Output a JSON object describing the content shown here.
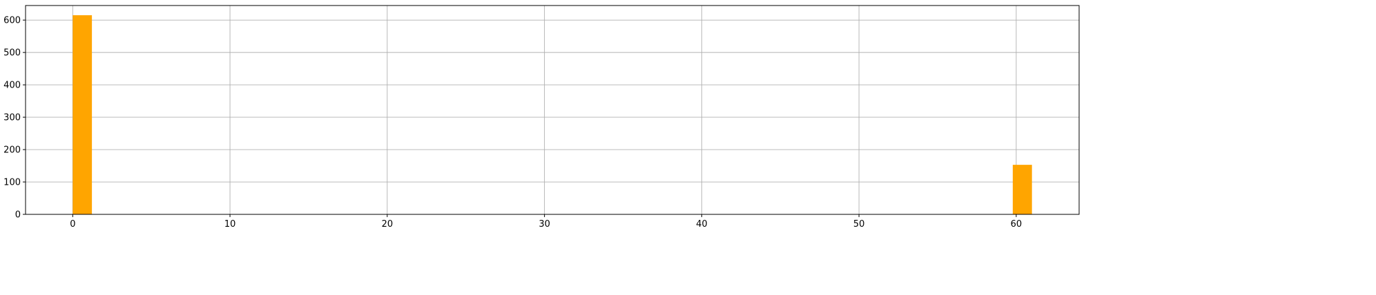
{
  "chart_data": {
    "type": "bar",
    "title": "",
    "xlabel": "",
    "ylabel": "",
    "xlim": [
      -3,
      64
    ],
    "ylim": [
      0,
      645
    ],
    "xticks": [
      0,
      10,
      20,
      30,
      40,
      50,
      60
    ],
    "yticks": [
      0,
      100,
      200,
      300,
      400,
      500,
      600
    ],
    "grid": true,
    "legend": "none",
    "bar_color": "#ffa500",
    "bins": [
      {
        "x_start": 0,
        "x_end": 1.22,
        "value": 615
      },
      {
        "x_start": 59.78,
        "x_end": 61,
        "value": 153
      }
    ]
  }
}
